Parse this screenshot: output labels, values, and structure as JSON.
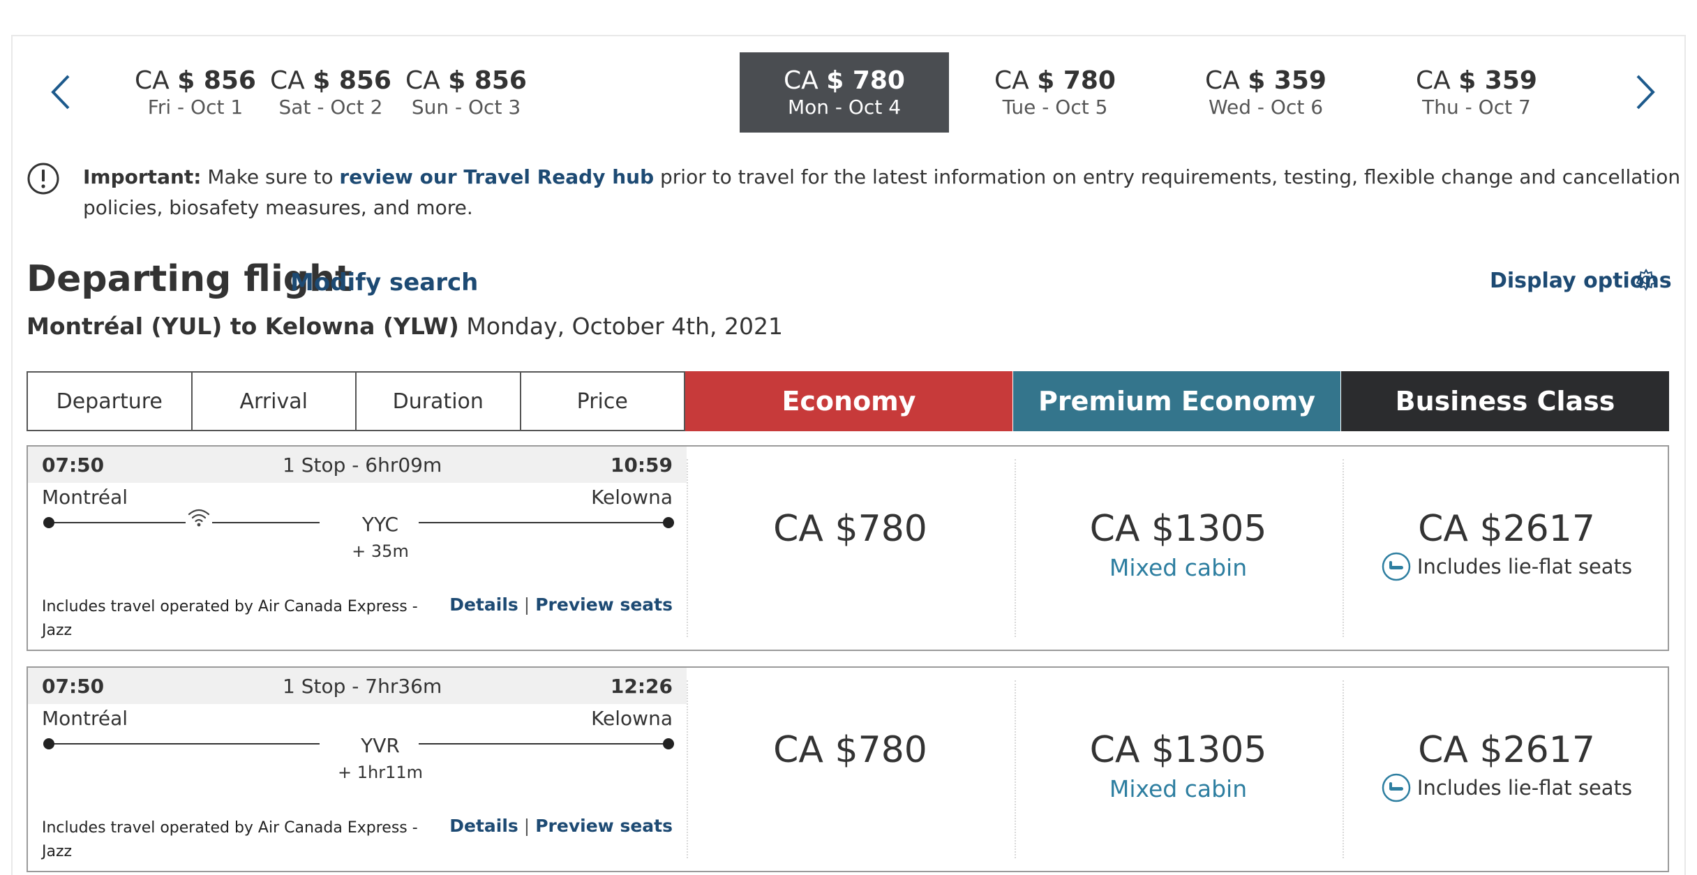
{
  "carousel": {
    "days": [
      {
        "currency": "CA",
        "amount": "$ 856",
        "date": "Fri - Oct 1",
        "selected": false
      },
      {
        "currency": "CA",
        "amount": "$ 856",
        "date": "Sat - Oct 2",
        "selected": false
      },
      {
        "currency": "CA",
        "amount": "$ 856",
        "date": "Sun - Oct 3",
        "selected": false
      },
      {
        "currency": "CA",
        "amount": "$ 780",
        "date": "Mon - Oct 4",
        "selected": true
      },
      {
        "currency": "CA",
        "amount": "$ 780",
        "date": "Tue - Oct 5",
        "selected": false
      },
      {
        "currency": "CA",
        "amount": "$ 359",
        "date": "Wed - Oct 6",
        "selected": false
      },
      {
        "currency": "CA",
        "amount": "$ 359",
        "date": "Thu - Oct 7",
        "selected": false
      }
    ],
    "selected_color": "#4a4d51"
  },
  "notice": {
    "label": "Important:",
    "text_before": " Make sure to ",
    "link": "review our Travel Ready hub",
    "text_after": " prior to travel for the latest information on entry requirements, testing, flexible change and cancellation policies, biosafety measures, and more."
  },
  "header": {
    "title": "Departing flight",
    "modify": "Modify search",
    "display_options": "Display options",
    "route": "Montréal (YUL) to Kelowna (YLW)",
    "date": "Monday, October 4th, 2021"
  },
  "sort": [
    "Departure",
    "Arrival",
    "Duration",
    "Price"
  ],
  "cabins": {
    "economy": "Economy",
    "premium": "Premium Economy",
    "business": "Business Class",
    "colors": {
      "economy": "#c73a3a",
      "premium": "#34758c",
      "business": "#2b2c2e"
    }
  },
  "flights": [
    {
      "dep_time": "07:50",
      "stops": "1 Stop - 6hr09m",
      "arr_time": "10:59",
      "from": "Montréal",
      "to": "Kelowna",
      "via": "YYC",
      "layover": "+ 35m",
      "wifi": true,
      "operated": "Includes travel operated by Air Canada Express - Jazz",
      "details": "Details",
      "preview": "Preview seats",
      "economy": "CA $780",
      "premium": "CA $1305",
      "premium_note": "Mixed cabin",
      "business": "CA $2617",
      "business_note": "Includes lie-flat seats"
    },
    {
      "dep_time": "07:50",
      "stops": "1 Stop - 7hr36m",
      "arr_time": "12:26",
      "from": "Montréal",
      "to": "Kelowna",
      "via": "YVR",
      "layover": "+ 1hr11m",
      "wifi": false,
      "operated": "Includes travel operated by Air Canada Express - Jazz",
      "details": "Details",
      "preview": "Preview seats",
      "economy": "CA $780",
      "premium": "CA $1305",
      "premium_note": "Mixed cabin",
      "business": "CA $2617",
      "business_note": "Includes lie-flat seats"
    }
  ]
}
